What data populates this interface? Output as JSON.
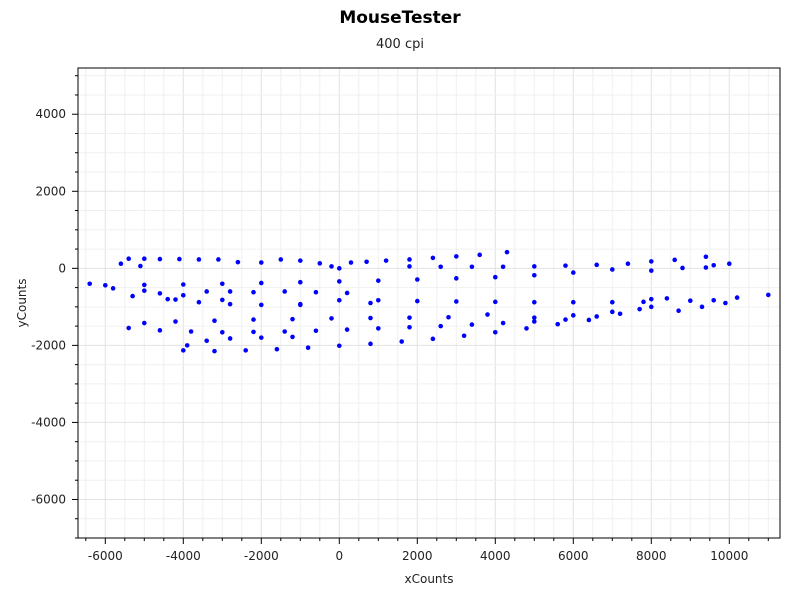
{
  "chart_data": {
    "type": "scatter",
    "title": "MouseTester",
    "subtitle": "400 cpi",
    "xlabel": "xCounts",
    "ylabel": "yCounts",
    "xlim": [
      -6700,
      11300
    ],
    "ylim": [
      -7000,
      5200
    ],
    "xticks": [
      -6000,
      -4000,
      -2000,
      0,
      2000,
      4000,
      6000,
      8000,
      10000
    ],
    "yticks": [
      -6000,
      -4000,
      -2000,
      0,
      2000,
      4000
    ],
    "grid": true,
    "point_color": "#0000ff",
    "series": [
      {
        "values": [
          {
            "x": 0,
            "y": 0
          },
          {
            "x": 300,
            "y": 150
          },
          {
            "x": 700,
            "y": 170
          },
          {
            "x": 1200,
            "y": 200
          },
          {
            "x": 1800,
            "y": 230
          },
          {
            "x": 2400,
            "y": 270
          },
          {
            "x": 3000,
            "y": 310
          },
          {
            "x": 3600,
            "y": 350
          },
          {
            "x": 4300,
            "y": 420
          },
          {
            "x": -200,
            "y": 50
          },
          {
            "x": -500,
            "y": 130
          },
          {
            "x": -1000,
            "y": 200
          },
          {
            "x": -1500,
            "y": 230
          },
          {
            "x": -2000,
            "y": 150
          },
          {
            "x": -2600,
            "y": 160
          },
          {
            "x": -3100,
            "y": 230
          },
          {
            "x": -3600,
            "y": 230
          },
          {
            "x": -4100,
            "y": 240
          },
          {
            "x": -4600,
            "y": 240
          },
          {
            "x": -5000,
            "y": 250
          },
          {
            "x": -5400,
            "y": 250
          },
          {
            "x": -5600,
            "y": 120
          },
          {
            "x": -5100,
            "y": 60
          },
          {
            "x": 1800,
            "y": 50
          },
          {
            "x": 2600,
            "y": 40
          },
          {
            "x": 3400,
            "y": 40
          },
          {
            "x": 4200,
            "y": 40
          },
          {
            "x": 5000,
            "y": 50
          },
          {
            "x": 5800,
            "y": 70
          },
          {
            "x": 6600,
            "y": 90
          },
          {
            "x": 7400,
            "y": 120
          },
          {
            "x": 8000,
            "y": 180
          },
          {
            "x": 8600,
            "y": 220
          },
          {
            "x": 9400,
            "y": 300
          },
          {
            "x": 8000,
            "y": -60
          },
          {
            "x": 8800,
            "y": 10
          },
          {
            "x": 9600,
            "y": 80
          },
          {
            "x": 10000,
            "y": 120
          },
          {
            "x": 9400,
            "y": 20
          },
          {
            "x": 7000,
            "y": -30
          },
          {
            "x": 6000,
            "y": -110
          },
          {
            "x": 5000,
            "y": -180
          },
          {
            "x": 4000,
            "y": -230
          },
          {
            "x": 3000,
            "y": -260
          },
          {
            "x": 2000,
            "y": -290
          },
          {
            "x": 1000,
            "y": -320
          },
          {
            "x": 0,
            "y": -340
          },
          {
            "x": -1000,
            "y": -360
          },
          {
            "x": -2000,
            "y": -380
          },
          {
            "x": -3000,
            "y": -400
          },
          {
            "x": -4000,
            "y": -420
          },
          {
            "x": -5000,
            "y": -430
          },
          {
            "x": -6000,
            "y": -440
          },
          {
            "x": -6400,
            "y": -400
          },
          {
            "x": -5800,
            "y": -520
          },
          {
            "x": -5000,
            "y": -580
          },
          {
            "x": -4600,
            "y": -650
          },
          {
            "x": -4000,
            "y": -700
          },
          {
            "x": -3400,
            "y": -600
          },
          {
            "x": -2800,
            "y": -600
          },
          {
            "x": -2200,
            "y": -620
          },
          {
            "x": -1400,
            "y": -600
          },
          {
            "x": -600,
            "y": -620
          },
          {
            "x": 200,
            "y": -640
          },
          {
            "x": -5300,
            "y": -720
          },
          {
            "x": -4400,
            "y": -800
          },
          {
            "x": -3600,
            "y": -880
          },
          {
            "x": -2800,
            "y": -930
          },
          {
            "x": -2000,
            "y": -950
          },
          {
            "x": -1000,
            "y": -930
          },
          {
            "x": 0,
            "y": -830
          },
          {
            "x": 1000,
            "y": -830
          },
          {
            "x": 2000,
            "y": -850
          },
          {
            "x": 3000,
            "y": -860
          },
          {
            "x": 4000,
            "y": -870
          },
          {
            "x": 5000,
            "y": -880
          },
          {
            "x": 6000,
            "y": -880
          },
          {
            "x": 7000,
            "y": -880
          },
          {
            "x": 7800,
            "y": -870
          },
          {
            "x": 8400,
            "y": -780
          },
          {
            "x": 9000,
            "y": -840
          },
          {
            "x": 9600,
            "y": -830
          },
          {
            "x": 10200,
            "y": -760
          },
          {
            "x": 11000,
            "y": -690
          },
          {
            "x": -4200,
            "y": -810
          },
          {
            "x": -3000,
            "y": -820
          },
          {
            "x": -1000,
            "y": -950
          },
          {
            "x": 800,
            "y": -900
          },
          {
            "x": 8000,
            "y": -800
          },
          {
            "x": 8700,
            "y": -1100
          },
          {
            "x": 9300,
            "y": -1000
          },
          {
            "x": 9900,
            "y": -900
          },
          {
            "x": 8000,
            "y": -1000
          },
          {
            "x": 7000,
            "y": -1130
          },
          {
            "x": 6000,
            "y": -1220
          },
          {
            "x": 5000,
            "y": -1280
          },
          {
            "x": 3800,
            "y": -1200
          },
          {
            "x": 2800,
            "y": -1270
          },
          {
            "x": 1800,
            "y": -1280
          },
          {
            "x": 800,
            "y": -1290
          },
          {
            "x": -200,
            "y": -1300
          },
          {
            "x": -1200,
            "y": -1320
          },
          {
            "x": -2200,
            "y": -1330
          },
          {
            "x": -3200,
            "y": -1360
          },
          {
            "x": -4200,
            "y": -1380
          },
          {
            "x": -5000,
            "y": -1420
          },
          {
            "x": -5400,
            "y": -1550
          },
          {
            "x": -4600,
            "y": -1610
          },
          {
            "x": -3800,
            "y": -1640
          },
          {
            "x": -3000,
            "y": -1660
          },
          {
            "x": -2200,
            "y": -1650
          },
          {
            "x": -1400,
            "y": -1640
          },
          {
            "x": -600,
            "y": -1620
          },
          {
            "x": 200,
            "y": -1590
          },
          {
            "x": 1000,
            "y": -1560
          },
          {
            "x": 1800,
            "y": -1530
          },
          {
            "x": 2600,
            "y": -1500
          },
          {
            "x": 3400,
            "y": -1460
          },
          {
            "x": 4200,
            "y": -1420
          },
          {
            "x": 5000,
            "y": -1380
          },
          {
            "x": 5800,
            "y": -1330
          },
          {
            "x": 6600,
            "y": -1250
          },
          {
            "x": 7200,
            "y": -1180
          },
          {
            "x": 7700,
            "y": -1060
          },
          {
            "x": -3900,
            "y": -2000
          },
          {
            "x": -3400,
            "y": -1880
          },
          {
            "x": -2800,
            "y": -1820
          },
          {
            "x": -2000,
            "y": -1800
          },
          {
            "x": -1200,
            "y": -1780
          },
          {
            "x": -4000,
            "y": -2130
          },
          {
            "x": -3200,
            "y": -2150
          },
          {
            "x": -2400,
            "y": -2130
          },
          {
            "x": -1600,
            "y": -2100
          },
          {
            "x": -800,
            "y": -2060
          },
          {
            "x": 0,
            "y": -2010
          },
          {
            "x": 800,
            "y": -1960
          },
          {
            "x": 1600,
            "y": -1900
          },
          {
            "x": 2400,
            "y": -1830
          },
          {
            "x": 3200,
            "y": -1750
          },
          {
            "x": 4000,
            "y": -1660
          },
          {
            "x": 4800,
            "y": -1560
          },
          {
            "x": 5600,
            "y": -1450
          },
          {
            "x": 6400,
            "y": -1340
          }
        ]
      }
    ]
  }
}
